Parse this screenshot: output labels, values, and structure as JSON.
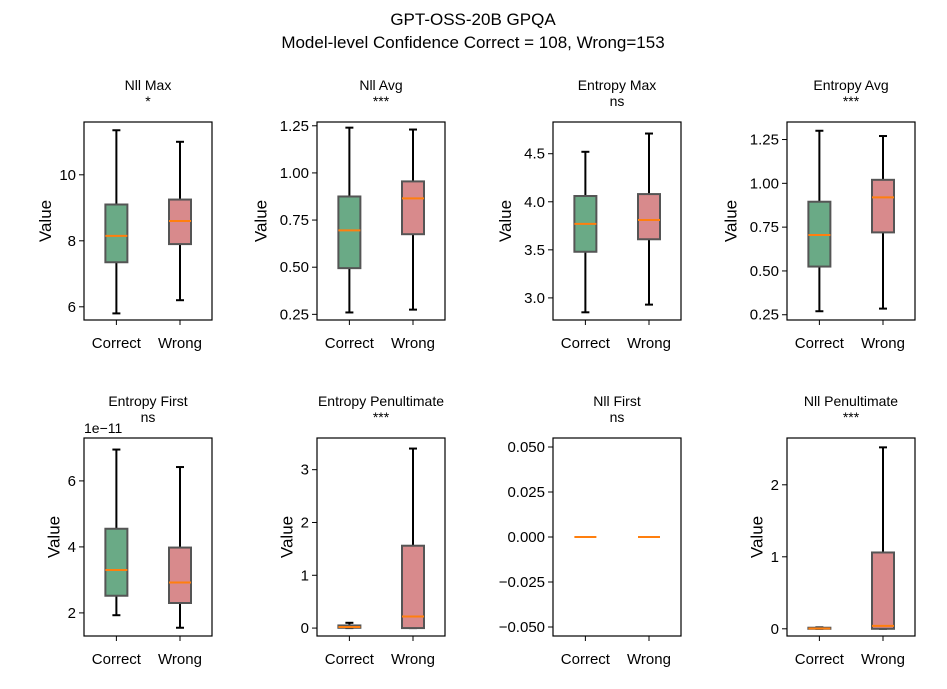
{
  "figure": {
    "title_line1": "GPT-OSS-20B GPQA",
    "title_line2": "Model-level Confidence Correct = 108, Wrong=153"
  },
  "colors": {
    "correct": "#6aaa86",
    "wrong": "#d88a8c",
    "median": "#ff7f0e",
    "box_edge": "#555555",
    "whisker": "#000000"
  },
  "chart_data": [
    {
      "type": "box",
      "title": "Nll Max",
      "significance": "*",
      "ylabel": "Value",
      "categories": [
        "Correct",
        "Wrong"
      ],
      "ylim": [
        5.6,
        11.6
      ],
      "yticks": [
        6,
        8,
        10
      ],
      "ytick_labels": [
        "6",
        "8",
        "10"
      ],
      "boxes": [
        {
          "name": "Correct",
          "min": 5.8,
          "q1": 7.35,
          "median": 8.15,
          "q3": 9.1,
          "max": 11.35
        },
        {
          "name": "Wrong",
          "min": 6.2,
          "q1": 7.9,
          "median": 8.6,
          "q3": 9.25,
          "max": 11.0
        }
      ]
    },
    {
      "type": "box",
      "title": "Nll Avg",
      "significance": "***",
      "ylabel": "Value",
      "categories": [
        "Correct",
        "Wrong"
      ],
      "ylim": [
        0.22,
        1.27
      ],
      "yticks": [
        0.25,
        0.5,
        0.75,
        1.0,
        1.25
      ],
      "ytick_labels": [
        "0.25",
        "0.50",
        "0.75",
        "1.00",
        "1.25"
      ],
      "boxes": [
        {
          "name": "Correct",
          "min": 0.26,
          "q1": 0.495,
          "median": 0.695,
          "q3": 0.875,
          "max": 1.24
        },
        {
          "name": "Wrong",
          "min": 0.275,
          "q1": 0.675,
          "median": 0.865,
          "q3": 0.955,
          "max": 1.23
        }
      ]
    },
    {
      "type": "box",
      "title": "Entropy Max",
      "significance": "ns",
      "ylabel": "Value",
      "categories": [
        "Correct",
        "Wrong"
      ],
      "ylim": [
        2.77,
        4.83
      ],
      "yticks": [
        3.0,
        3.5,
        4.0,
        4.5
      ],
      "ytick_labels": [
        "3.0",
        "3.5",
        "4.0",
        "4.5"
      ],
      "boxes": [
        {
          "name": "Correct",
          "min": 2.85,
          "q1": 3.48,
          "median": 3.77,
          "q3": 4.06,
          "max": 4.52
        },
        {
          "name": "Wrong",
          "min": 2.93,
          "q1": 3.61,
          "median": 3.81,
          "q3": 4.08,
          "max": 4.71
        }
      ]
    },
    {
      "type": "box",
      "title": "Entropy Avg",
      "significance": "***",
      "ylabel": "Value",
      "categories": [
        "Correct",
        "Wrong"
      ],
      "ylim": [
        0.22,
        1.35
      ],
      "yticks": [
        0.25,
        0.5,
        0.75,
        1.0,
        1.25
      ],
      "ytick_labels": [
        "0.25",
        "0.50",
        "0.75",
        "1.00",
        "1.25"
      ],
      "boxes": [
        {
          "name": "Correct",
          "min": 0.27,
          "q1": 0.525,
          "median": 0.705,
          "q3": 0.895,
          "max": 1.3
        },
        {
          "name": "Wrong",
          "min": 0.285,
          "q1": 0.72,
          "median": 0.92,
          "q3": 1.02,
          "max": 1.27
        }
      ]
    },
    {
      "type": "box",
      "title": "Entropy First",
      "significance": "ns",
      "ylabel": "Value",
      "categories": [
        "Correct",
        "Wrong"
      ],
      "offset_text": "1e−11",
      "ylim": [
        1.3,
        7.3
      ],
      "yticks": [
        2,
        4,
        6
      ],
      "ytick_labels": [
        "2",
        "4",
        "6"
      ],
      "boxes": [
        {
          "name": "Correct",
          "min": 1.93,
          "q1": 2.52,
          "median": 3.3,
          "q3": 4.55,
          "max": 6.95
        },
        {
          "name": "Wrong",
          "min": 1.55,
          "q1": 2.3,
          "median": 2.92,
          "q3": 3.98,
          "max": 6.42
        }
      ]
    },
    {
      "type": "box",
      "title": "Entropy Penultimate",
      "significance": "***",
      "ylabel": "Value",
      "categories": [
        "Correct",
        "Wrong"
      ],
      "ylim": [
        -0.15,
        3.6
      ],
      "yticks": [
        0,
        1,
        2,
        3
      ],
      "ytick_labels": [
        "0",
        "1",
        "2",
        "3"
      ],
      "boxes": [
        {
          "name": "Correct",
          "min": 0.0,
          "q1": 0.005,
          "median": 0.02,
          "q3": 0.05,
          "max": 0.1
        },
        {
          "name": "Wrong",
          "min": 0.0,
          "q1": 0.0,
          "median": 0.22,
          "q3": 1.56,
          "max": 3.4
        }
      ]
    },
    {
      "type": "box",
      "title": "Nll First",
      "significance": "ns",
      "ylabel": "",
      "categories": [
        "Correct",
        "Wrong"
      ],
      "ylim": [
        -0.055,
        0.055
      ],
      "yticks": [
        -0.05,
        -0.025,
        0.0,
        0.025,
        0.05
      ],
      "ytick_labels": [
        "−0.050",
        "−0.025",
        "0.000",
        "0.025",
        "0.050"
      ],
      "boxes": [
        {
          "name": "Correct",
          "min": 0.0,
          "q1": 0.0,
          "median": 0.0,
          "q3": 0.0,
          "max": 0.0
        },
        {
          "name": "Wrong",
          "min": 0.0,
          "q1": 0.0,
          "median": 0.0,
          "q3": 0.0,
          "max": 0.0
        }
      ]
    },
    {
      "type": "box",
      "title": "Nll Penultimate",
      "significance": "***",
      "ylabel": "Value",
      "categories": [
        "Correct",
        "Wrong"
      ],
      "ylim": [
        -0.1,
        2.65
      ],
      "yticks": [
        0,
        1,
        2
      ],
      "ytick_labels": [
        "0",
        "1",
        "2"
      ],
      "boxes": [
        {
          "name": "Correct",
          "min": 0.0,
          "q1": 0.0,
          "median": 0.005,
          "q3": 0.015,
          "max": 0.02
        },
        {
          "name": "Wrong",
          "min": 0.0,
          "q1": 0.0,
          "median": 0.04,
          "q3": 1.06,
          "max": 2.52
        }
      ]
    }
  ]
}
